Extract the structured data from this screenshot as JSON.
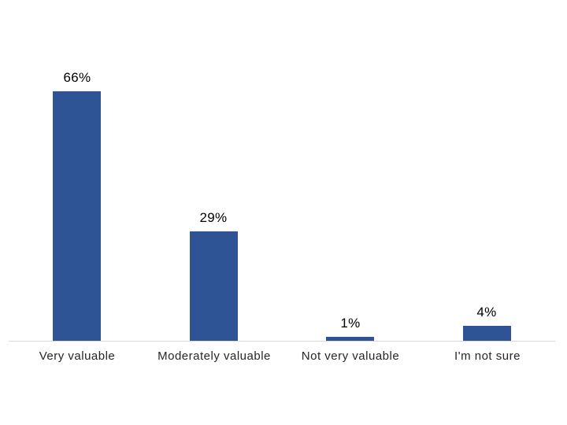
{
  "chart_data": {
    "type": "bar",
    "categories": [
      "Very valuable",
      "Moderately valuable",
      "Not very valuable",
      "I'm not sure"
    ],
    "values": [
      66,
      29,
      1,
      4
    ],
    "data_labels": [
      "66%",
      "29%",
      "1%",
      "4%"
    ],
    "title": "",
    "xlabel": "",
    "ylabel": "",
    "ylim": [
      0,
      70
    ],
    "grid": false,
    "legend": false,
    "y_axis_visible": false,
    "x_axis_visible": true,
    "colors": {
      "bar": "#2F5496",
      "axis_line": "#D9D9D9",
      "data_label_text": "#000000",
      "category_label_text": "#262626",
      "background": "#FFFFFF"
    }
  }
}
